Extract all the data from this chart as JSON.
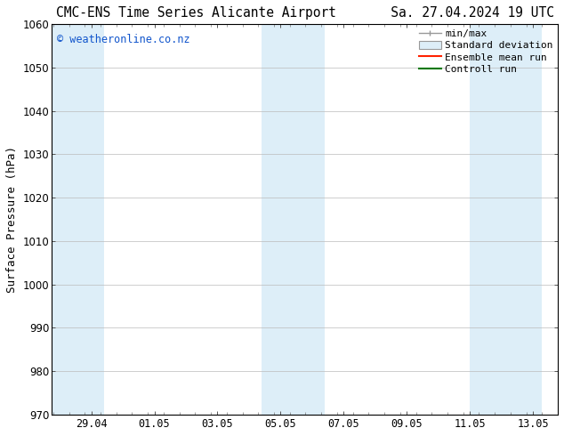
{
  "title": "CMC-ENS Time Series Alicante Airport       Sa. 27.04.2024 19 UTC",
  "ylabel": "Surface Pressure (hPa)",
  "watermark": "© weatheronline.co.nz",
  "watermark_color": "#1155cc",
  "ylim": [
    970,
    1060
  ],
  "yticks": [
    970,
    980,
    990,
    1000,
    1010,
    1020,
    1030,
    1040,
    1050,
    1060
  ],
  "xtick_labels": [
    "29.04",
    "01.05",
    "03.05",
    "05.05",
    "07.05",
    "09.05",
    "11.05",
    "13.05"
  ],
  "xtick_positions": [
    1.208,
    3.208,
    5.208,
    7.208,
    9.208,
    11.208,
    13.208,
    15.208
  ],
  "xlim": [
    -0.05,
    16.0
  ],
  "shaded_bands": [
    {
      "x_start": -0.05,
      "x_end": 1.6,
      "color": "#ddeef8"
    },
    {
      "x_start": 6.6,
      "x_end": 8.6,
      "color": "#ddeef8"
    },
    {
      "x_start": 13.2,
      "x_end": 15.5,
      "color": "#ddeef8"
    }
  ],
  "bg_color": "#ffffff",
  "plot_bg_color": "#ffffff",
  "grid_color": "#bbbbbb",
  "title_fontsize": 10.5,
  "axis_label_fontsize": 9,
  "tick_fontsize": 8.5,
  "legend_fontsize": 8
}
